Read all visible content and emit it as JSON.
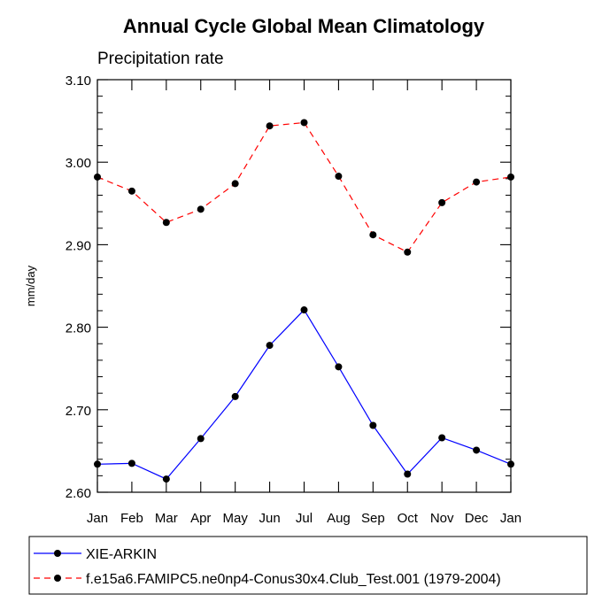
{
  "chart_data": {
    "type": "line",
    "title": "Annual Cycle Global Mean Climatology",
    "subtitle": "Precipitation rate",
    "xlabel": "",
    "ylabel": "mm/day",
    "categories": [
      "Jan",
      "Feb",
      "Mar",
      "Apr",
      "May",
      "Jun",
      "Jul",
      "Aug",
      "Sep",
      "Oct",
      "Nov",
      "Dec",
      "Jan"
    ],
    "ylim": [
      2.6,
      3.1
    ],
    "yticks": [
      "2.60",
      "2.70",
      "2.80",
      "2.90",
      "3.00",
      "3.10"
    ],
    "series": [
      {
        "name": "XIE-ARKIN",
        "color": "#0000ff",
        "dash": "solid",
        "values": [
          2.634,
          2.635,
          2.616,
          2.665,
          2.716,
          2.778,
          2.821,
          2.752,
          2.681,
          2.622,
          2.666,
          2.651,
          2.634
        ]
      },
      {
        "name": "f.e15a6.FAMIPC5.ne0np4-Conus30x4.Club_Test.001 (1979-2004)",
        "color": "#ff0000",
        "dash": "dashed",
        "values": [
          2.982,
          2.965,
          2.927,
          2.943,
          2.974,
          3.044,
          3.048,
          2.983,
          2.912,
          2.891,
          2.951,
          2.976,
          2.982
        ]
      }
    ],
    "legend": {
      "position": "bottom"
    }
  }
}
